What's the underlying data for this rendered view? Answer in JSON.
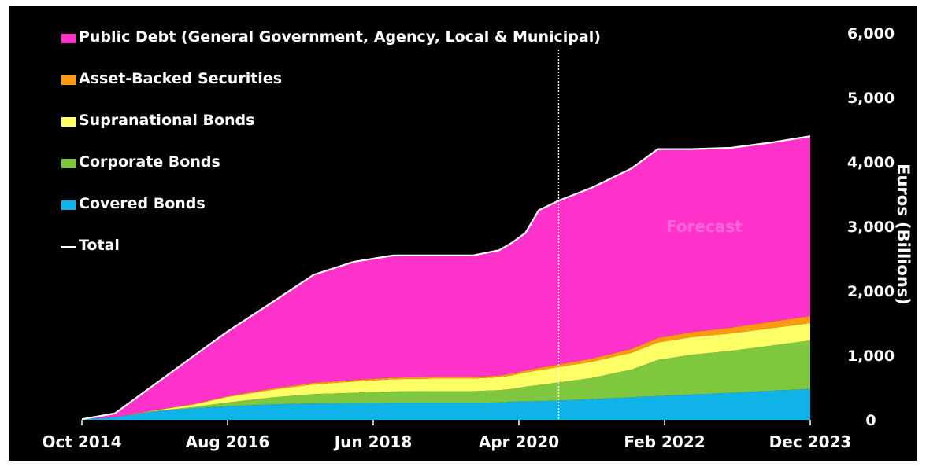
{
  "chart_data": {
    "type": "area",
    "stacked": true,
    "title": "",
    "xlabel": "",
    "ylabel": "Euros (Billions)",
    "ylim": [
      0,
      6000
    ],
    "yticks": [
      "0",
      "1,000",
      "2,000",
      "3,000",
      "4,000",
      "5,000",
      "6,000"
    ],
    "xticks": [
      "Oct 2014",
      "Aug 2016",
      "Jun 2018",
      "Apr 2020",
      "Feb 2022",
      "Dec 2023"
    ],
    "x": [
      "2014-10",
      "2015-03",
      "2015-09",
      "2016-03",
      "2016-08",
      "2017-03",
      "2017-09",
      "2018-03",
      "2018-09",
      "2019-03",
      "2019-09",
      "2020-01",
      "2020-03",
      "2020-05",
      "2020-07",
      "2020-10",
      "2021-03",
      "2021-09",
      "2022-01",
      "2022-06",
      "2022-12",
      "2023-06",
      "2023-12"
    ],
    "series": [
      {
        "name": "Covered Bonds",
        "color": "#10b3e8",
        "values": [
          10,
          40,
          130,
          180,
          210,
          240,
          255,
          260,
          265,
          265,
          265,
          270,
          280,
          285,
          290,
          300,
          320,
          350,
          370,
          390,
          420,
          450,
          480
        ]
      },
      {
        "name": "Corporate Bonds",
        "color": "#7ec73e",
        "values": [
          0,
          0,
          5,
          20,
          60,
          110,
          145,
          160,
          175,
          180,
          180,
          190,
          200,
          230,
          250,
          280,
          330,
          430,
          560,
          620,
          650,
          700,
          750
        ]
      },
      {
        "name": "Supranational Bonds",
        "color": "#ffff66",
        "values": [
          0,
          0,
          10,
          40,
          85,
          120,
          150,
          175,
          190,
          195,
          195,
          200,
          210,
          220,
          230,
          240,
          250,
          260,
          270,
          270,
          270,
          270,
          270
        ]
      },
      {
        "name": "Asset-Backed Securities",
        "color": "#ff9a10",
        "values": [
          0,
          0,
          5,
          10,
          15,
          20,
          25,
          25,
          25,
          25,
          25,
          28,
          30,
          32,
          35,
          40,
          50,
          60,
          70,
          80,
          90,
          100,
          110
        ]
      },
      {
        "name": "Public Debt (General Government, Agency, Local & Municipal)",
        "color": "#ff33cc",
        "values": [
          0,
          60,
          400,
          750,
          1000,
          1350,
          1675,
          1830,
          1895,
          1885,
          1885,
          1942,
          2030,
          2133,
          2445,
          2540,
          2650,
          2800,
          2930,
          2840,
          2790,
          2780,
          2790
        ]
      }
    ],
    "total": {
      "name": "Total",
      "color": "#ffffff",
      "values": [
        10,
        100,
        550,
        1000,
        1370,
        1840,
        2250,
        2450,
        2550,
        2550,
        2550,
        2630,
        2750,
        2900,
        3250,
        3400,
        3600,
        3900,
        4200,
        4200,
        4220,
        4300,
        4400
      ]
    },
    "forecast_start": "2020-10",
    "annotations": [
      {
        "text": "Forecast",
        "x": "2022-08",
        "y": 3000,
        "color": "#ff66dd"
      }
    ],
    "grid": false,
    "legend_position": "top-left",
    "y_axis_side": "right"
  }
}
